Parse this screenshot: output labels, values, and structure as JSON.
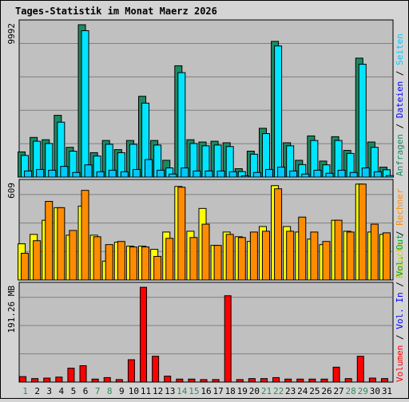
{
  "title": "Tages-Statistik im Monat Maerz 2026",
  "colors": {
    "title": "#0000ff",
    "background": "#c0c0c0",
    "outer": "#d4d4d4",
    "grid": "#808080",
    "anfragen": "#1b8a62",
    "dateien": "#00e5ff",
    "seiten": "#00c8ff",
    "besuche": "#ffff00",
    "rechner": "#ff8c00",
    "volumen": "#ff0000",
    "vol_in": "#0000ff",
    "vol_out": "#00a050",
    "weekend": "#2e8b57",
    "weekday": "#000000"
  },
  "right_labels": {
    "top": [
      {
        "text": "Anfragen",
        "color": "#1b8a62"
      },
      {
        "text": " / ",
        "color": "#000000"
      },
      {
        "text": "Dateien",
        "color": "#0000ff"
      },
      {
        "text": " / ",
        "color": "#000000"
      },
      {
        "text": "Seiten",
        "color": "#00c8ff"
      }
    ],
    "middle": [
      {
        "text": "Besuche",
        "color": "#cccc00"
      },
      {
        "text": " / ",
        "color": "#000000"
      },
      {
        "text": "Rechner",
        "color": "#ff8c00"
      }
    ],
    "bottom": [
      {
        "text": "Volumen",
        "color": "#ff0000"
      },
      {
        "text": " / ",
        "color": "#000000"
      },
      {
        "text": "Vol. In",
        "color": "#0000ff"
      },
      {
        "text": " / ",
        "color": "#000000"
      },
      {
        "text": "Vol. Out",
        "color": "#00a050"
      }
    ]
  },
  "chart_data": [
    {
      "type": "bar",
      "panel": "hits",
      "ymax_label": "9992",
      "ymax": 9992,
      "categories": [
        "1",
        "2",
        "3",
        "4",
        "5",
        "6",
        "7",
        "8",
        "9",
        "10",
        "11",
        "12",
        "13",
        "14",
        "15",
        "16",
        "17",
        "18",
        "19",
        "20",
        "21",
        "22",
        "23",
        "24",
        "25",
        "26",
        "27",
        "28",
        "29",
        "30",
        "31"
      ],
      "weekend_days": [
        "1",
        "7",
        "8",
        "14",
        "15",
        "21",
        "22",
        "28",
        "29"
      ],
      "series": [
        {
          "name": "Anfragen",
          "values": [
            1650,
            2600,
            2450,
            4050,
            1950,
            9992,
            1600,
            2400,
            1800,
            2400,
            5300,
            2400,
            1100,
            7300,
            2450,
            2300,
            2350,
            2250,
            550,
            1700,
            3200,
            8900,
            2250,
            1100,
            2700,
            1050,
            2650,
            1750,
            7800,
            2300,
            650
          ]
        },
        {
          "name": "Dateien",
          "values": [
            1420,
            2350,
            2200,
            3600,
            1700,
            9600,
            1380,
            2150,
            1600,
            2150,
            4850,
            2100,
            600,
            6850,
            2200,
            2050,
            2100,
            2000,
            360,
            1500,
            2850,
            8600,
            2050,
            820,
            2400,
            800,
            2400,
            1550,
            7400,
            1950,
            480
          ]
        },
        {
          "name": "Seiten",
          "values": [
            400,
            500,
            450,
            700,
            300,
            800,
            350,
            450,
            350,
            500,
            1150,
            450,
            200,
            600,
            400,
            400,
            400,
            350,
            80,
            300,
            500,
            650,
            400,
            200,
            450,
            250,
            450,
            300,
            600,
            350,
            100
          ]
        }
      ]
    },
    {
      "type": "bar",
      "panel": "visits",
      "ymax_label": "609",
      "ymax": 609,
      "categories": [
        "1",
        "2",
        "3",
        "4",
        "5",
        "6",
        "7",
        "8",
        "9",
        "10",
        "11",
        "12",
        "13",
        "14",
        "15",
        "16",
        "17",
        "18",
        "19",
        "20",
        "21",
        "22",
        "23",
        "24",
        "25",
        "26",
        "27",
        "28",
        "29",
        "30",
        "31"
      ],
      "series": [
        {
          "name": "Besuche",
          "values": [
            230,
            290,
            380,
            460,
            285,
            470,
            285,
            120,
            240,
            215,
            215,
            195,
            305,
            595,
            310,
            455,
            220,
            305,
            275,
            245,
            340,
            600,
            340,
            305,
            260,
            225,
            380,
            310,
            610,
            305,
            290
          ]
        },
        {
          "name": "Rechner",
          "values": [
            170,
            250,
            500,
            460,
            315,
            570,
            275,
            225,
            245,
            210,
            210,
            150,
            265,
            590,
            270,
            355,
            220,
            290,
            270,
            305,
            310,
            580,
            310,
            400,
            305,
            245,
            380,
            305,
            610,
            355,
            300
          ]
        }
      ]
    },
    {
      "type": "bar",
      "panel": "volume",
      "ymax_label": "191.26 MB",
      "ymax": 191.26,
      "unit": "MB",
      "categories": [
        "1",
        "2",
        "3",
        "4",
        "5",
        "6",
        "7",
        "8",
        "9",
        "10",
        "11",
        "12",
        "13",
        "14",
        "15",
        "16",
        "17",
        "18",
        "19",
        "20",
        "21",
        "22",
        "23",
        "24",
        "25",
        "26",
        "27",
        "28",
        "29",
        "30",
        "31"
      ],
      "series": [
        {
          "name": "Volumen",
          "values": [
            11,
            7,
            8,
            10,
            28,
            33,
            6,
            9,
            5,
            45,
            191,
            52,
            12,
            6,
            6,
            5,
            5,
            174,
            5,
            7,
            7,
            9,
            6,
            6,
            6,
            6,
            30,
            7,
            52,
            8,
            7
          ]
        }
      ]
    }
  ]
}
